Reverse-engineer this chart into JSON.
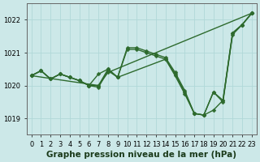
{
  "xlabel": "Graphe pression niveau de la mer (hPa)",
  "x_ticks": [
    0,
    1,
    2,
    3,
    4,
    5,
    6,
    7,
    8,
    9,
    10,
    11,
    12,
    13,
    14,
    15,
    16,
    17,
    18,
    19,
    20,
    21,
    22,
    23
  ],
  "ylim": [
    1018.5,
    1022.5
  ],
  "y_ticks": [
    1019,
    1020,
    1021,
    1022
  ],
  "xlim": [
    -0.5,
    23.5
  ],
  "line_color": "#2d6a2d",
  "bg_color": "#cce8e8",
  "grid_color": "#b0d8d8",
  "marker": "D",
  "marker_size": 2.5,
  "line_width": 1.0,
  "series": [
    {
      "x": [
        0,
        1,
        2,
        3,
        4,
        5,
        6,
        7,
        8,
        9,
        10,
        11,
        12,
        13,
        14,
        15,
        16,
        17,
        18,
        19,
        20,
        21,
        22,
        23
      ],
      "y": [
        1020.3,
        1020.45,
        1020.2,
        1020.35,
        1020.25,
        1020.15,
        1020.0,
        1019.95,
        1020.45,
        1020.25,
        1021.15,
        1021.15,
        1021.05,
        1020.95,
        1020.85,
        1020.4,
        1019.85,
        1019.15,
        1019.1,
        1019.25,
        1019.55,
        1021.6,
        1021.85,
        1022.2
      ]
    },
    {
      "x": [
        0,
        1,
        2,
        3,
        4,
        5,
        6,
        7,
        8,
        9,
        10,
        11,
        12,
        13,
        14,
        15,
        16,
        17,
        18,
        19,
        20,
        21,
        22,
        23
      ],
      "y": [
        1020.3,
        1020.45,
        1020.2,
        1020.35,
        1020.25,
        1020.15,
        1020.0,
        1020.35,
        1020.5,
        1020.25,
        1021.1,
        1021.1,
        1021.0,
        1020.9,
        1020.8,
        1020.35,
        1019.8,
        1019.15,
        1019.1,
        1019.8,
        1019.55,
        1021.6,
        1021.85,
        1022.2
      ]
    },
    {
      "x": [
        0,
        1,
        2,
        3,
        4,
        5,
        6,
        7,
        8,
        23
      ],
      "y": [
        1020.3,
        1020.45,
        1020.2,
        1020.35,
        1020.25,
        1020.15,
        1020.0,
        1020.0,
        1020.4,
        1022.2
      ]
    },
    {
      "x": [
        0,
        7,
        8,
        9,
        14,
        15,
        16,
        17,
        18,
        19,
        20,
        21,
        22,
        23
      ],
      "y": [
        1020.3,
        1020.0,
        1020.5,
        1020.25,
        1020.8,
        1020.3,
        1019.75,
        1019.15,
        1019.1,
        1019.8,
        1019.5,
        1021.55,
        1021.85,
        1022.2
      ]
    }
  ],
  "xlabel_fontsize": 7.5,
  "tick_fontsize": 6.0
}
